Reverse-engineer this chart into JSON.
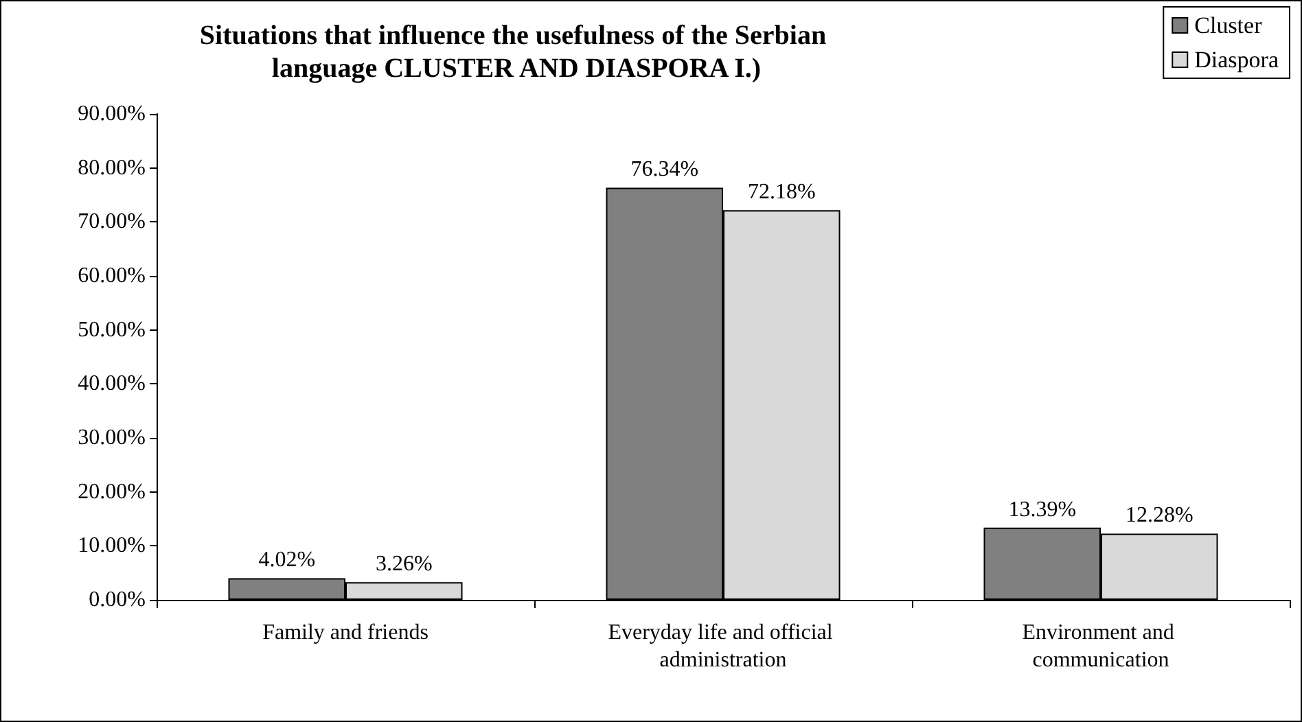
{
  "chart_data": {
    "type": "bar",
    "title": "Situations that influence the usefulness of the Serbian language CLUSTER AND DIASPORA I.)",
    "categories": [
      "Family and friends",
      "Everyday life and official administration",
      "Environment and communication"
    ],
    "series": [
      {
        "name": "Cluster",
        "color": "#808080",
        "values": [
          4.02,
          76.34,
          13.39
        ],
        "value_labels": [
          "4.02%",
          "76.34%",
          "13.39%"
        ]
      },
      {
        "name": "Diaspora",
        "color": "#d9d9d9",
        "values": [
          3.26,
          72.18,
          12.28
        ],
        "value_labels": [
          "3.26%",
          "72.18%",
          "12.28%"
        ]
      }
    ],
    "ylim": [
      0,
      90
    ],
    "yticks": [
      {
        "value": 0,
        "label": "0.00%"
      },
      {
        "value": 10,
        "label": "10.00%"
      },
      {
        "value": 20,
        "label": "20.00%"
      },
      {
        "value": 30,
        "label": "30.00%"
      },
      {
        "value": 40,
        "label": "40.00%"
      },
      {
        "value": 50,
        "label": "50.00%"
      },
      {
        "value": 60,
        "label": "60.00%"
      },
      {
        "value": 70,
        "label": "70.00%"
      },
      {
        "value": 80,
        "label": "80.00%"
      },
      {
        "value": 90,
        "label": "90.00%"
      }
    ],
    "grid": false,
    "legend": "top right"
  }
}
